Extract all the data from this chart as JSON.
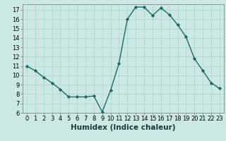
{
  "x": [
    0,
    1,
    2,
    3,
    4,
    5,
    6,
    7,
    8,
    9,
    10,
    11,
    12,
    13,
    14,
    15,
    16,
    17,
    18,
    19,
    20,
    21,
    22,
    23
  ],
  "y": [
    11,
    10.5,
    9.8,
    9.2,
    8.5,
    7.7,
    7.7,
    7.7,
    7.8,
    6.1,
    8.4,
    11.3,
    16.0,
    17.3,
    17.3,
    16.4,
    17.2,
    16.5,
    15.4,
    14.1,
    11.8,
    10.5,
    9.2,
    8.6
  ],
  "xlim": [
    -0.5,
    23.5
  ],
  "ylim": [
    6,
    17.6
  ],
  "yticks": [
    6,
    7,
    8,
    9,
    10,
    11,
    12,
    13,
    14,
    15,
    16,
    17
  ],
  "xticks": [
    0,
    1,
    2,
    3,
    4,
    5,
    6,
    7,
    8,
    9,
    10,
    11,
    12,
    13,
    14,
    15,
    16,
    17,
    18,
    19,
    20,
    21,
    22,
    23
  ],
  "xlabel": "Humidex (Indice chaleur)",
  "line_color": "#1a6b60",
  "marker": "D",
  "marker_size": 2.2,
  "bg_color": "#cce8e5",
  "grid_color": "#aad4d0",
  "axis_color": "#777777",
  "xlabel_fontsize": 7.5,
  "tick_fontsize": 6,
  "linewidth": 1.0
}
